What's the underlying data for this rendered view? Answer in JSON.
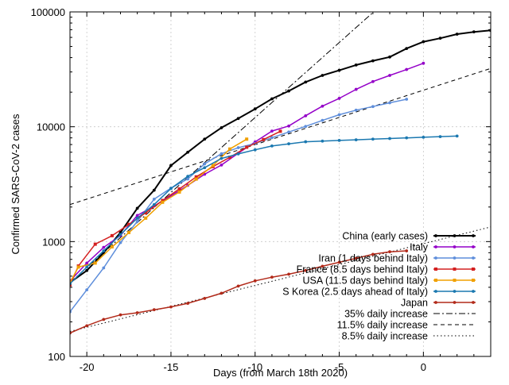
{
  "chart_data": {
    "type": "line",
    "title": "",
    "xlabel": "Days (from March 18th 2020)",
    "ylabel": "Confirmed SARS-CoV-2 cases",
    "xlim": [
      -21,
      4
    ],
    "ylim": [
      100,
      100000
    ],
    "yscale": "log",
    "grid": true,
    "legend_position": "bottom-right",
    "x_ticks": [
      -20,
      -15,
      -10,
      -5,
      0
    ],
    "y_ticks": [
      100,
      1000,
      10000,
      100000
    ],
    "x_tick_labels": [
      "-20",
      "-15",
      "-10",
      "-5",
      "0"
    ],
    "y_tick_labels": [
      "100",
      "1000",
      "10000",
      "100000"
    ],
    "series": [
      {
        "name": "China (early cases)",
        "color": "#000000",
        "width": 2,
        "marker": "dot",
        "x": [
          -21,
          -20,
          -19,
          -18,
          -17,
          -16,
          -15,
          -14,
          -13,
          -12,
          -11,
          -10,
          -9,
          -8,
          -7,
          -6,
          -5,
          -4,
          -3,
          -2,
          -1,
          0,
          1,
          2,
          3,
          4
        ],
        "y": [
          440,
          560,
          800,
          1200,
          1950,
          2800,
          4600,
          6000,
          7800,
          9800,
          11800,
          14300,
          17500,
          20500,
          24500,
          28000,
          31000,
          34500,
          37500,
          40500,
          48000,
          55000,
          59000,
          64000,
          67000,
          69000
        ]
      },
      {
        "name": "Italy",
        "color": "#9400c8",
        "width": 1.5,
        "marker": "dot",
        "x": [
          -21,
          -20,
          -19,
          -18,
          -17,
          -16,
          -15,
          -14,
          -13,
          -12,
          -11,
          -10,
          -9,
          -8,
          -7,
          -6,
          -5,
          -4,
          -3,
          -2,
          -1,
          0
        ],
        "y": [
          455,
          650,
          890,
          1130,
          1690,
          2040,
          2500,
          3090,
          3860,
          4640,
          5880,
          7380,
          9170,
          10150,
          12460,
          15110,
          17660,
          21160,
          24750,
          27980,
          31510,
          35710
        ]
      },
      {
        "name": "Iran (1 days behind Italy)",
        "color": "#5e8edb",
        "width": 1.5,
        "marker": "dot",
        "x": [
          -21,
          -20,
          -19,
          -18,
          -17,
          -16,
          -15,
          -14,
          -13,
          -12,
          -11,
          -10,
          -9,
          -8,
          -7,
          -6,
          -5,
          -4,
          -3,
          -2,
          -1
        ],
        "y": [
          245,
          380,
          590,
          980,
          1500,
          2340,
          2920,
          3510,
          4750,
          5820,
          6570,
          7160,
          8040,
          9000,
          10070,
          11360,
          12730,
          13940,
          14990,
          16170,
          17360
        ]
      },
      {
        "name": "France (8.5 days behind Italy)",
        "color": "#d42020",
        "width": 1.5,
        "marker": "square",
        "x": [
          -21,
          -20.5,
          -19.5,
          -18.5,
          -17.5,
          -16.5,
          -15.5,
          -14.5,
          -13.5,
          -12.5,
          -11.5,
          -10.5,
          -9.5,
          -8.5
        ],
        "y": [
          420,
          613,
          949,
          1126,
          1412,
          1784,
          2281,
          2876,
          3661,
          4499,
          5423,
          6633,
          7730,
          9134
        ]
      },
      {
        "name": "USA (11.5 days behind Italy)",
        "color": "#f0a000",
        "width": 1.5,
        "marker": "square",
        "x": [
          -21,
          -20.5,
          -19.5,
          -18.5,
          -17.5,
          -16.5,
          -15.5,
          -14.5,
          -13.5,
          -12.5,
          -11.5,
          -10.5
        ],
        "y": [
          440,
          600,
          650,
          900,
          1200,
          1600,
          2200,
          2700,
          3500,
          4600,
          6400,
          7800
        ]
      },
      {
        "name": "S Korea (2.5 days ahead of Italy)",
        "color": "#1a78b0",
        "width": 1.5,
        "marker": "dot",
        "x": [
          -21,
          -20,
          -19,
          -18,
          -17,
          -16,
          -15,
          -14,
          -13,
          -12,
          -11,
          -10,
          -9,
          -8,
          -7,
          -6,
          -5,
          -4,
          -3,
          -2,
          -1,
          0,
          1,
          2
        ],
        "y": [
          430,
          600,
          830,
          1150,
          1600,
          2100,
          2900,
          3700,
          4400,
          5300,
          5800,
          6300,
          6800,
          7100,
          7400,
          7500,
          7600,
          7700,
          7800,
          7900,
          8000,
          8100,
          8200,
          8300
        ]
      },
      {
        "name": "Japan",
        "color": "#b22a1a",
        "width": 1.5,
        "marker": "dot",
        "x": [
          -21,
          -20,
          -19,
          -18,
          -17,
          -16,
          -15,
          -14,
          -13,
          -12,
          -11,
          -10,
          -9,
          -8,
          -7,
          -6,
          -5,
          -4,
          -3,
          -2,
          -1
        ],
        "y": [
          160,
          185,
          210,
          230,
          240,
          255,
          270,
          290,
          320,
          355,
          410,
          455,
          490,
          520,
          560,
          610,
          660,
          715,
          775,
          815,
          830
        ]
      },
      {
        "name": "35% daily increase",
        "color": "#000000",
        "width": 1,
        "dash": "8,3,2,3",
        "x": [
          -21,
          4
        ],
        "y": [
          440,
          811000
        ]
      },
      {
        "name": "11.5% daily increase",
        "color": "#000000",
        "width": 1,
        "dash": "5,4",
        "x": [
          -21,
          4
        ],
        "y": [
          2100,
          32200
        ]
      },
      {
        "name": "8.5% daily increase",
        "color": "#000000",
        "width": 1,
        "dash": "1.5,3",
        "x": [
          -21,
          4
        ],
        "y": [
          165,
          1340
        ]
      }
    ]
  }
}
